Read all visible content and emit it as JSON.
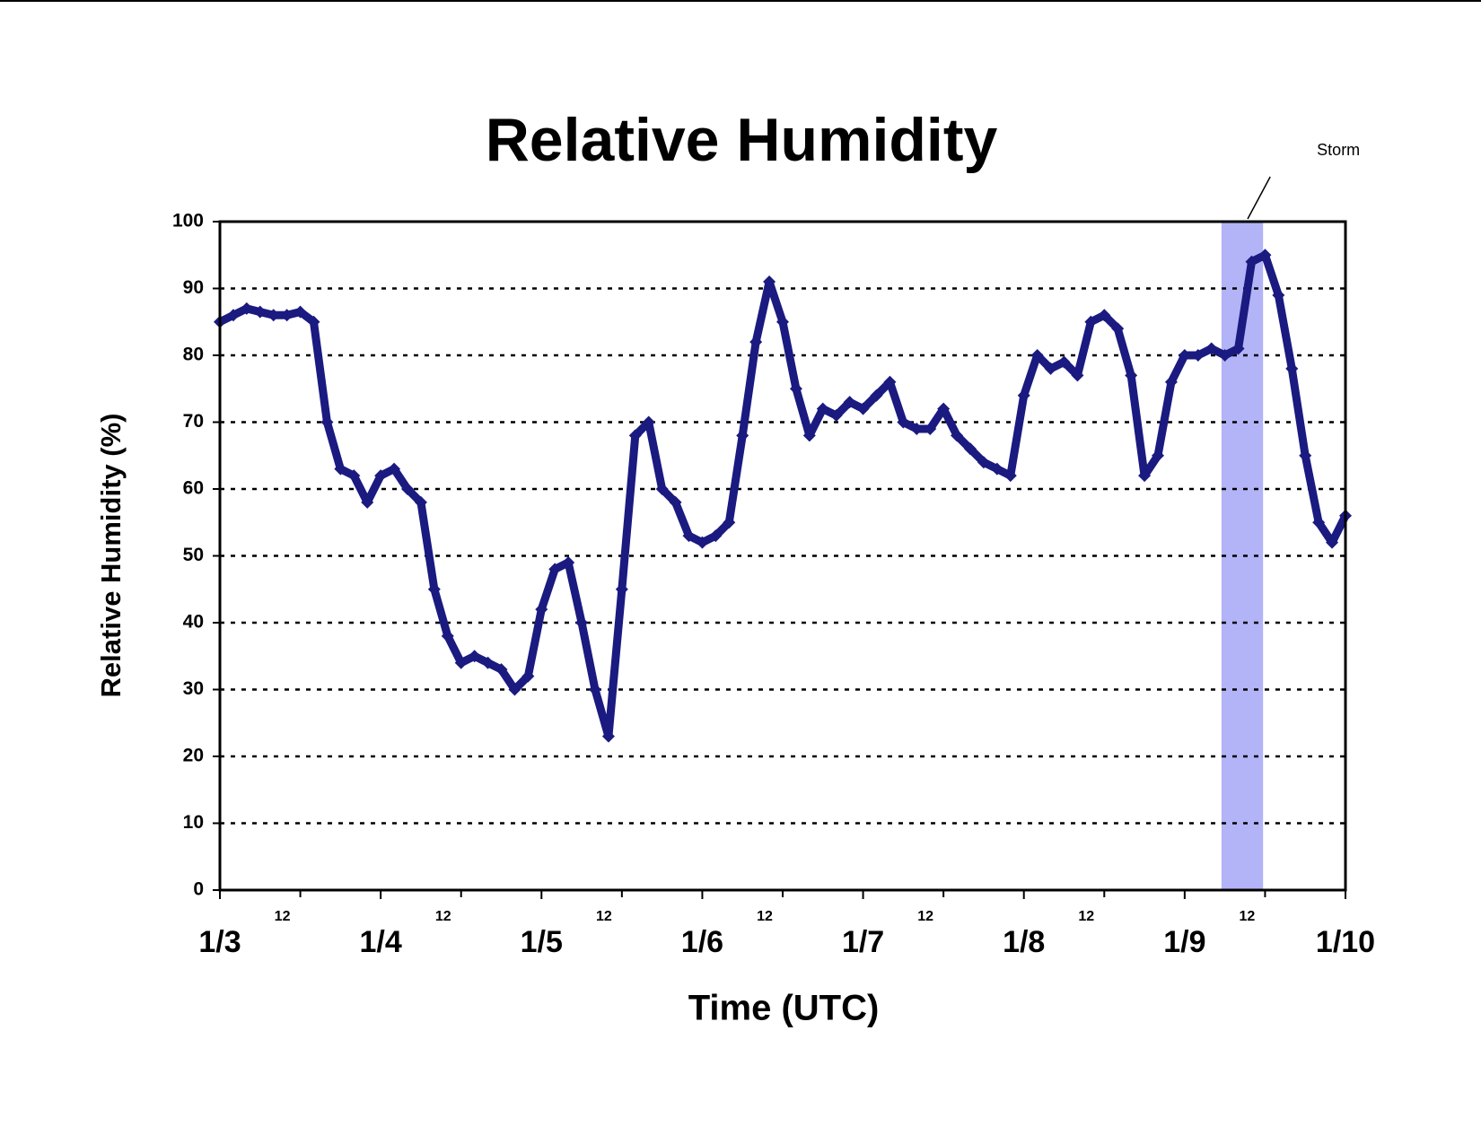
{
  "chart_data": {
    "type": "scatter",
    "title": "Relative Humidity",
    "xlabel": "Time (UTC)",
    "ylabel": "Relative Humidity (%)",
    "x": [
      0,
      2,
      4,
      6,
      8,
      10,
      12,
      14,
      16,
      18,
      20,
      22,
      24,
      26,
      28,
      30,
      32,
      34,
      36,
      38,
      40,
      42,
      44,
      46,
      48,
      50,
      52,
      54,
      56,
      58,
      60,
      62,
      64,
      66,
      68,
      70,
      72,
      74,
      76,
      78,
      80,
      82,
      84,
      86,
      88,
      90,
      92,
      94,
      96,
      98,
      100,
      102,
      104,
      106,
      108,
      110,
      112,
      114,
      116,
      118,
      120,
      122,
      124,
      126,
      128,
      130,
      132,
      134,
      136,
      138,
      140,
      142,
      144,
      146,
      148,
      150,
      152,
      154,
      156,
      158,
      160,
      162,
      164,
      166,
      168
    ],
    "series": [
      {
        "name": "Relative Humidity",
        "color": "#1a1a80",
        "values": [
          85,
          86,
          87,
          86.5,
          86,
          86,
          86.5,
          85,
          70,
          63,
          62,
          58,
          62,
          63,
          60,
          58,
          45,
          38,
          34,
          35,
          34,
          33,
          30,
          32,
          42,
          48,
          49,
          40,
          30,
          23,
          45,
          68,
          70,
          60,
          58,
          53,
          52,
          53,
          55,
          68,
          82,
          91,
          85,
          75,
          68,
          72,
          71,
          73,
          72,
          74,
          76,
          70,
          69,
          69,
          72,
          68,
          66,
          64,
          63,
          62,
          74,
          80,
          78,
          79,
          77,
          85,
          86,
          84,
          77,
          62,
          65,
          76,
          80,
          80,
          81,
          80,
          81,
          94,
          95,
          89,
          78,
          65,
          55,
          52,
          56
        ]
      }
    ],
    "xlim": [
      0,
      168
    ],
    "xticks": [
      {
        "value": 0,
        "label": "1/3"
      },
      {
        "value": 24,
        "label": "1/4"
      },
      {
        "value": 48,
        "label": "1/5"
      },
      {
        "value": 72,
        "label": "1/6"
      },
      {
        "value": 96,
        "label": "1/7"
      },
      {
        "value": 120,
        "label": "1/8"
      },
      {
        "value": 144,
        "label": "1/9"
      },
      {
        "value": 168,
        "label": "1/10"
      }
    ],
    "xticks_minor": [
      {
        "value": 12,
        "label": "12"
      },
      {
        "value": 36,
        "label": "12"
      },
      {
        "value": 60,
        "label": "12"
      },
      {
        "value": 84,
        "label": "12"
      },
      {
        "value": 108,
        "label": "12"
      },
      {
        "value": 132,
        "label": "12"
      },
      {
        "value": 156,
        "label": "12"
      }
    ],
    "ylim": [
      0,
      100
    ],
    "yticks": [
      0,
      10,
      20,
      30,
      40,
      50,
      60,
      70,
      80,
      90,
      100
    ],
    "grid": true,
    "storm": {
      "label": "Storm",
      "x": [
        149.5,
        155.7
      ],
      "color": "#b3b3f7"
    }
  }
}
